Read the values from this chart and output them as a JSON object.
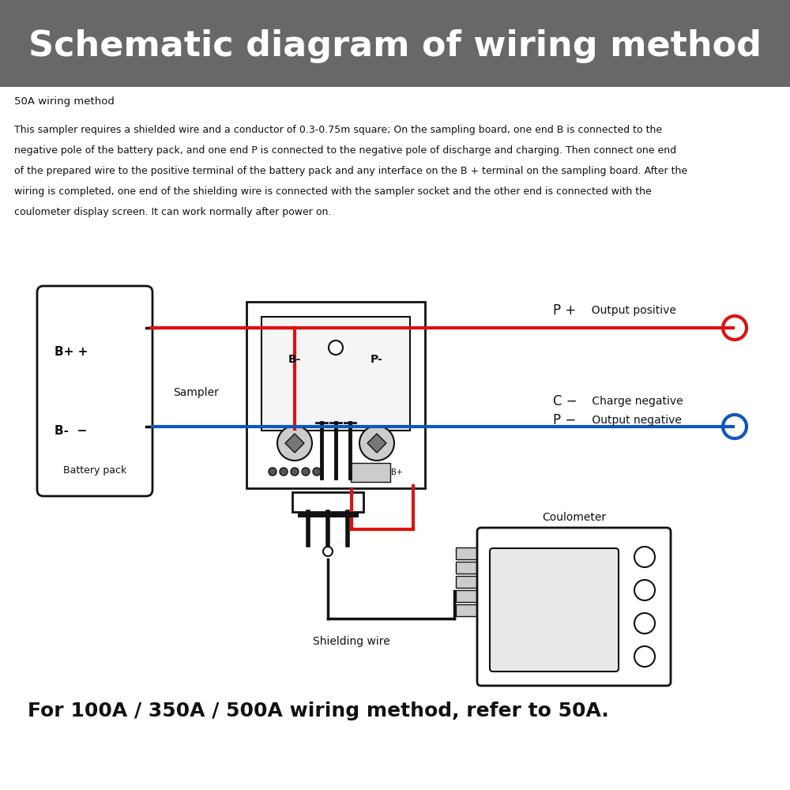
{
  "title": "Schematic diagram of wiring method",
  "title_bg": "#686868",
  "title_color": "#ffffff",
  "body_bg": "#ffffff",
  "subtitle": "50A wiring method",
  "desc1": "This sampler requires a shielded wire and a conductor of 0.3-0.75m square; On the sampling board, one end B is connected to the",
  "desc2": "negative pole of the battery pack, and one end P is connected to the negative pole of discharge and charging. Then connect one end",
  "desc3": "of the prepared wire to the positive terminal of the battery pack and any interface on the B + terminal on the sampling board. After the",
  "desc4": "wiring is completed, one end of the shielding wire is connected with the sampler socket and the other end is connected with the",
  "desc5": "coulometer display screen. It can work normally after power on.",
  "footer": "For 100A / 350A / 500A wiring method, refer to 50A.",
  "red": "#dd1111",
  "blue": "#1155bb",
  "black": "#111111",
  "lgray": "#cccccc",
  "dgray": "#555555"
}
